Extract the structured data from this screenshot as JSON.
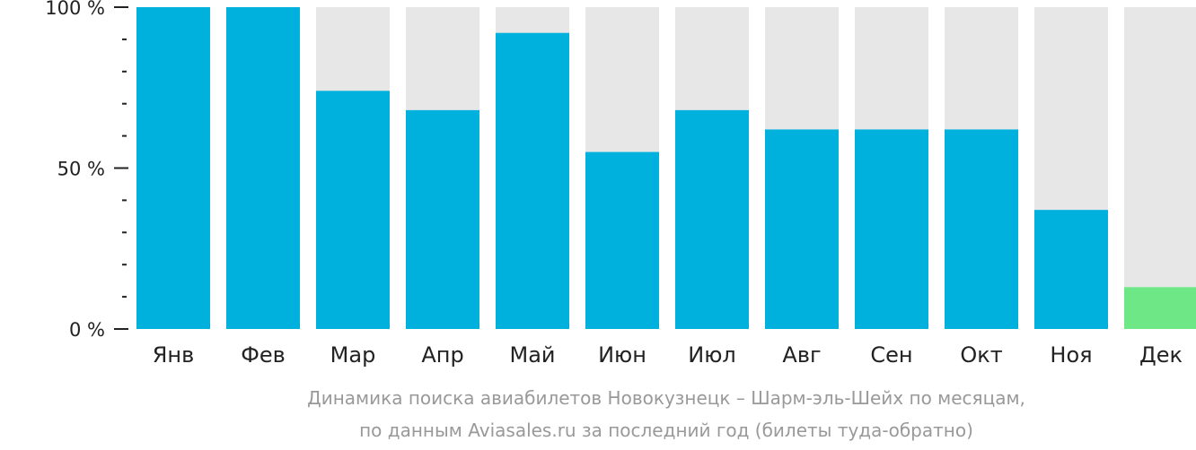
{
  "chart_data": {
    "type": "bar",
    "categories": [
      "Янв",
      "Фев",
      "Мар",
      "Апр",
      "Май",
      "Июн",
      "Июл",
      "Авг",
      "Сен",
      "Окт",
      "Ноя",
      "Дек"
    ],
    "values": [
      100,
      100,
      74,
      68,
      92,
      55,
      68,
      62,
      62,
      62,
      37,
      13
    ],
    "ylim": [
      0,
      100
    ],
    "yticks": [
      {
        "value": 0,
        "label": "0 %"
      },
      {
        "value": 50,
        "label": "50 %"
      },
      {
        "value": 100,
        "label": "100 %"
      }
    ],
    "minor_tick_step": 10,
    "highlight_index": 11,
    "colors": {
      "bar": "#00b0dd",
      "highlight": "#6ee887",
      "background_bar": "#e7e7e7",
      "axis": "#222222"
    },
    "caption_line1": "Динамика поиска авиабилетов Новокузнецк – Шарм-эль-Шейх по месяцам,",
    "caption_line2": "по данным Aviasales.ru за последний год (билеты туда-обратно)"
  }
}
